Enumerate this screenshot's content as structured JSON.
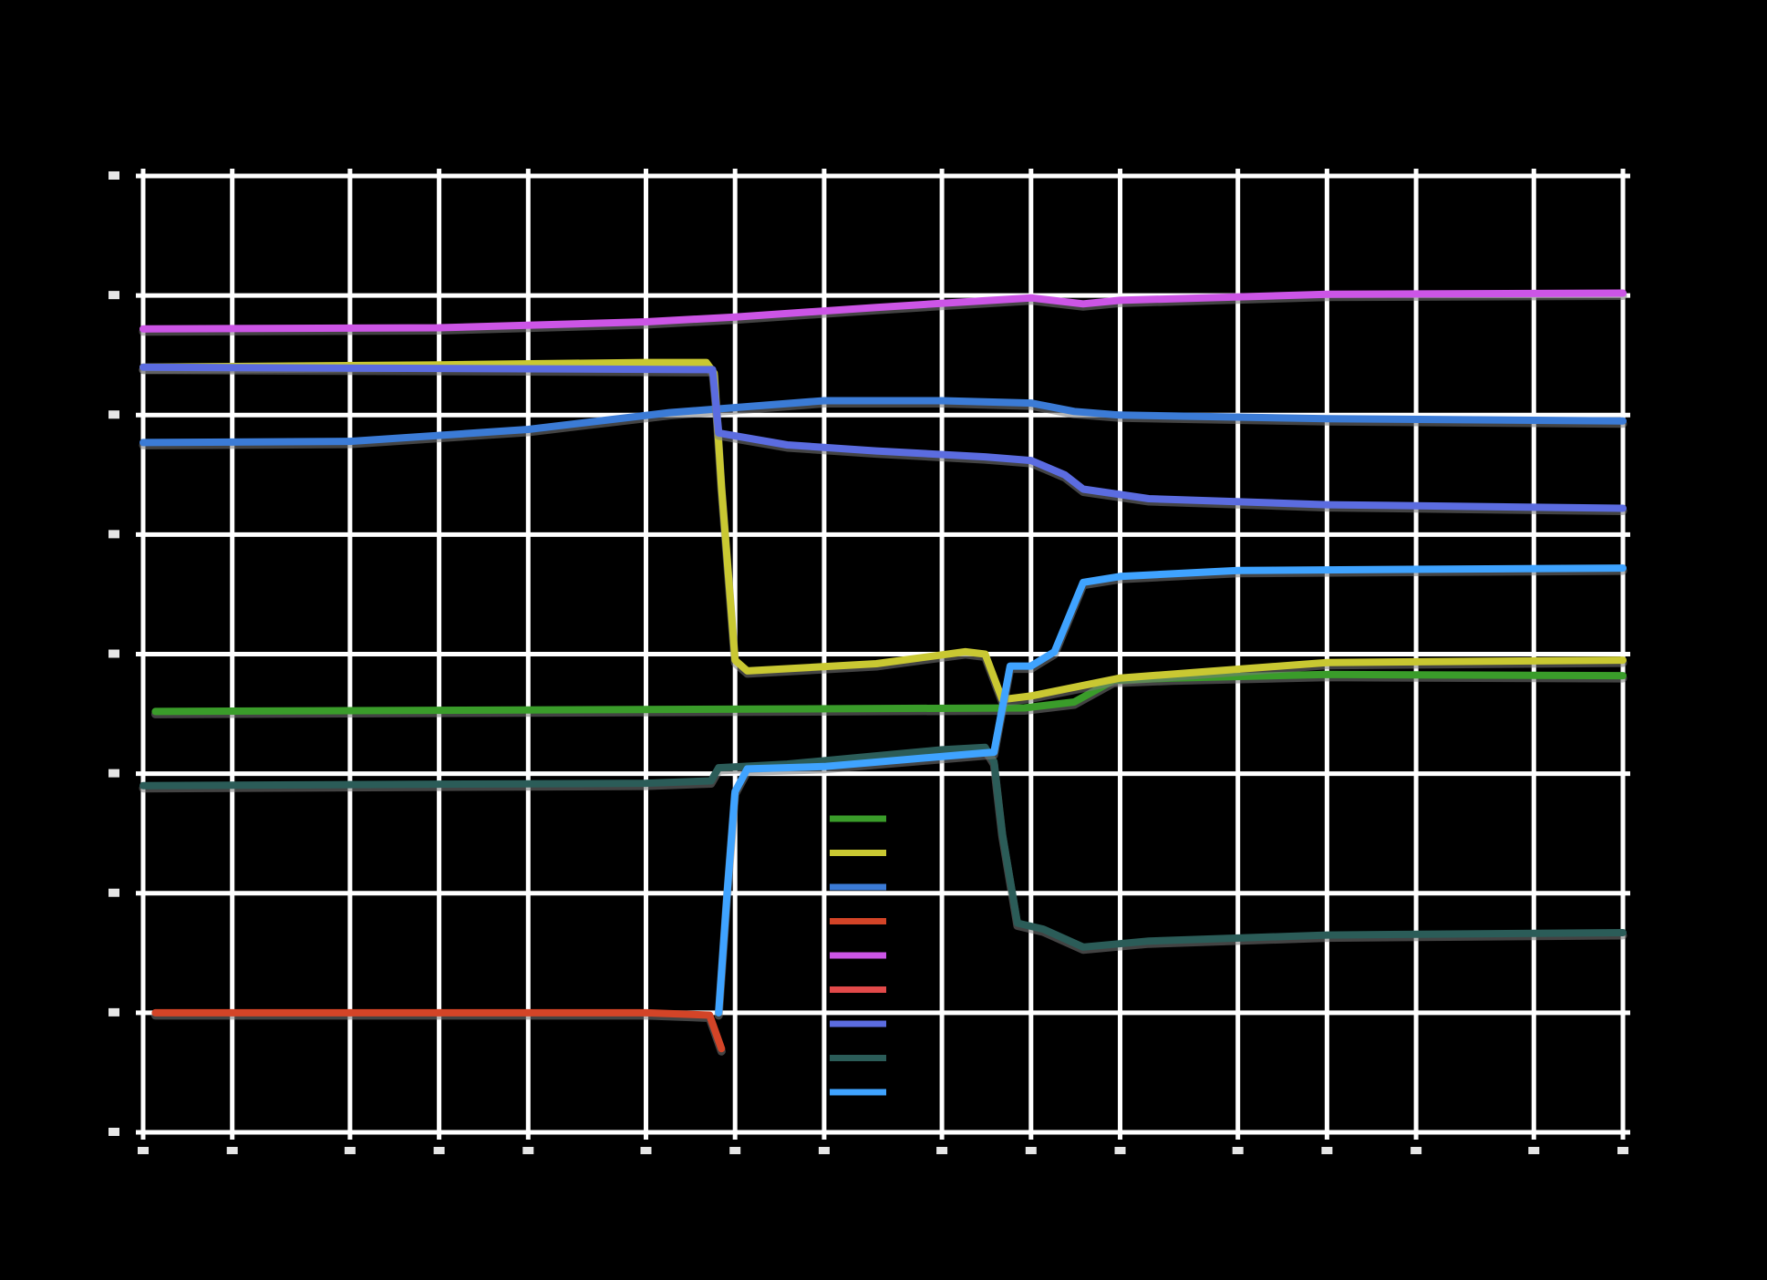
{
  "chart_data": {
    "type": "line",
    "title": "",
    "xlabel": "",
    "ylabel": "",
    "xscale": "log",
    "xlim": [
      0.01,
      1000
    ],
    "ylim": [
      -10,
      -2
    ],
    "grid": true,
    "background": "#000000",
    "grid_color": "#ffffff",
    "legend_position": "center",
    "x_ticks": [
      0.01,
      0.02,
      0.05,
      0.1,
      0.2,
      0.5,
      1,
      2,
      5,
      10,
      20,
      50,
      100,
      200,
      500,
      1000
    ],
    "x_tick_labels": [],
    "y_ticks": [
      -10,
      -9,
      -8,
      -7,
      -6,
      -5,
      -4,
      -3,
      -2
    ],
    "y_tick_labels": [],
    "series": [
      {
        "name": "",
        "color": "#3a9c2a",
        "points": [
          [
            0.011,
            -6.48
          ],
          [
            9.5,
            -6.45
          ],
          [
            14,
            -6.4
          ],
          [
            19,
            -6.22
          ],
          [
            30,
            -6.2
          ],
          [
            100,
            -6.17
          ],
          [
            1000,
            -6.18
          ]
        ]
      },
      {
        "name": "",
        "color": "#c9c832",
        "points": [
          [
            0.01,
            -3.6
          ],
          [
            0.1,
            -3.58
          ],
          [
            0.5,
            -3.56
          ],
          [
            0.8,
            -3.56
          ],
          [
            0.85,
            -3.65
          ],
          [
            0.9,
            -4.6
          ],
          [
            1.0,
            -6.05
          ],
          [
            1.1,
            -6.14
          ],
          [
            3,
            -6.08
          ],
          [
            6,
            -5.98
          ],
          [
            7,
            -6.0
          ],
          [
            8,
            -6.38
          ],
          [
            10,
            -6.35
          ],
          [
            20,
            -6.2
          ],
          [
            100,
            -6.07
          ],
          [
            1000,
            -6.05
          ]
        ]
      },
      {
        "name": "",
        "color": "#3b7bd6",
        "points": [
          [
            0.01,
            -4.23
          ],
          [
            0.05,
            -4.22
          ],
          [
            0.2,
            -4.12
          ],
          [
            0.6,
            -3.98
          ],
          [
            2,
            -3.88
          ],
          [
            5,
            -3.88
          ],
          [
            10,
            -3.9
          ],
          [
            14,
            -3.97
          ],
          [
            20,
            -4.0
          ],
          [
            100,
            -4.03
          ],
          [
            1000,
            -4.05
          ]
        ]
      },
      {
        "name": "",
        "color": "#d34427",
        "points": [
          [
            0.011,
            -9.0
          ],
          [
            0.1,
            -9.0
          ],
          [
            0.5,
            -9.0
          ],
          [
            0.82,
            -9.02
          ],
          [
            0.9,
            -9.3
          ]
        ]
      },
      {
        "name": "",
        "color": "#cc55e6",
        "points": [
          [
            0.01,
            -3.28
          ],
          [
            0.1,
            -3.27
          ],
          [
            0.5,
            -3.22
          ],
          [
            1.0,
            -3.18
          ],
          [
            3,
            -3.1
          ],
          [
            10,
            -3.02
          ],
          [
            15,
            -3.07
          ],
          [
            20,
            -3.04
          ],
          [
            100,
            -2.99
          ],
          [
            1000,
            -2.98
          ]
        ]
      },
      {
        "name": "",
        "color": "#e24a4a",
        "points": []
      },
      {
        "name": "",
        "color": "#5b6ce0",
        "points": [
          [
            0.01,
            -3.6
          ],
          [
            0.84,
            -3.62
          ],
          [
            0.88,
            -4.15
          ],
          [
            1.5,
            -4.25
          ],
          [
            3,
            -4.3
          ],
          [
            7,
            -4.35
          ],
          [
            10,
            -4.38
          ],
          [
            13,
            -4.5
          ],
          [
            15,
            -4.62
          ],
          [
            25,
            -4.7
          ],
          [
            100,
            -4.75
          ],
          [
            1000,
            -4.78
          ]
        ]
      },
      {
        "name": "",
        "color": "#2b5c58",
        "points": [
          [
            0.01,
            -7.1
          ],
          [
            0.5,
            -7.08
          ],
          [
            0.83,
            -7.06
          ],
          [
            0.88,
            -6.95
          ],
          [
            1.5,
            -6.92
          ],
          [
            5,
            -6.8
          ],
          [
            7,
            -6.78
          ],
          [
            7.5,
            -6.9
          ],
          [
            8,
            -7.5
          ],
          [
            9,
            -8.25
          ],
          [
            11,
            -8.3
          ],
          [
            15,
            -8.45
          ],
          [
            25,
            -8.4
          ],
          [
            100,
            -8.35
          ],
          [
            1000,
            -8.33
          ]
        ]
      },
      {
        "name": "",
        "color": "#3fa3ff",
        "points": [
          [
            0.88,
            -9.0
          ],
          [
            0.94,
            -8.0
          ],
          [
            1.0,
            -7.15
          ],
          [
            1.1,
            -6.96
          ],
          [
            2,
            -6.94
          ],
          [
            6,
            -6.84
          ],
          [
            7.5,
            -6.82
          ],
          [
            8.5,
            -6.1
          ],
          [
            10,
            -6.1
          ],
          [
            12,
            -5.98
          ],
          [
            15,
            -5.4
          ],
          [
            20,
            -5.35
          ],
          [
            50,
            -5.3
          ],
          [
            1000,
            -5.28
          ]
        ]
      }
    ]
  }
}
